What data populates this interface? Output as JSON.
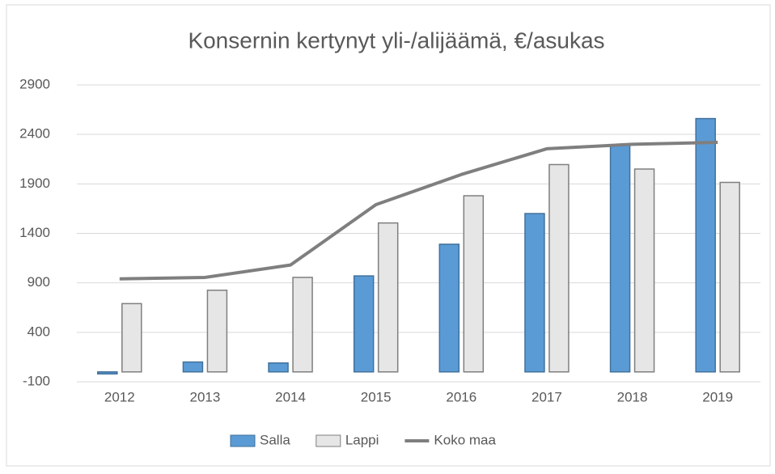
{
  "chart_data": {
    "type": "bar",
    "title": "Konsernin kertynyt yli-/alijäämä, €/asukas",
    "categories": [
      "2012",
      "2013",
      "2014",
      "2015",
      "2016",
      "2017",
      "2018",
      "2019"
    ],
    "series": [
      {
        "name": "Salla",
        "color": "#5b9bd5",
        "type": "bar",
        "values": [
          -20,
          100,
          90,
          970,
          1290,
          1600,
          2290,
          2560
        ]
      },
      {
        "name": "Lappi",
        "color": "#e7e6e6",
        "type": "bar",
        "values": [
          690,
          825,
          955,
          1505,
          1780,
          2095,
          2050,
          1915
        ]
      },
      {
        "name": "Koko maa",
        "color": "#7f7f7f",
        "type": "line",
        "values": [
          940,
          955,
          1080,
          1690,
          1995,
          2255,
          2300,
          2320
        ]
      }
    ],
    "ylim": [
      -100,
      2900
    ],
    "yticks": [
      -100,
      400,
      900,
      1400,
      1900,
      2400,
      2900
    ],
    "grid": true,
    "legend": "bottom"
  }
}
